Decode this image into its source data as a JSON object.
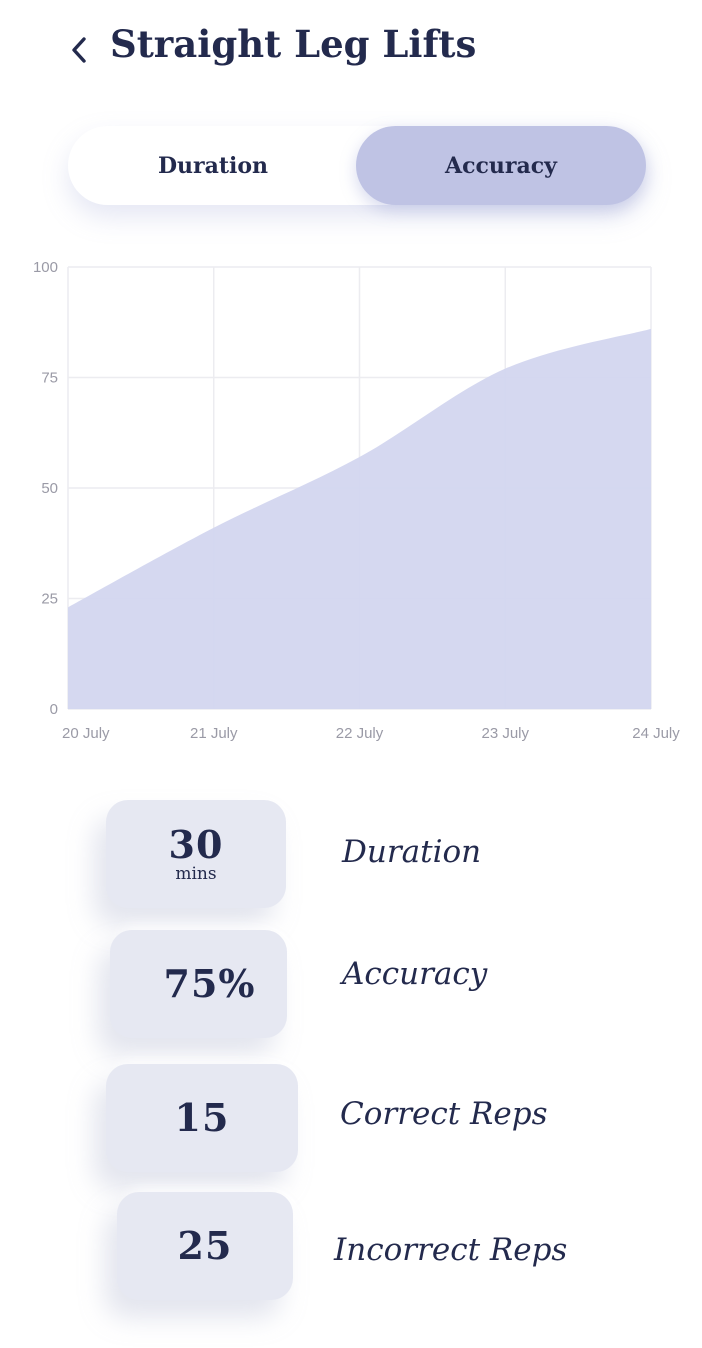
{
  "header": {
    "back_icon": "chevron-left-icon",
    "title": "Straight Leg Lifts"
  },
  "toggle": {
    "options": [
      "Duration",
      "Accuracy"
    ],
    "selected": "Accuracy"
  },
  "chart_data": {
    "type": "area",
    "x": [
      "20 July",
      "21 July",
      "22 July",
      "23 July",
      "24 July"
    ],
    "y_ticks": [
      0,
      25,
      50,
      75,
      100
    ],
    "ylim": [
      0,
      100
    ],
    "grid": true,
    "color": "#d3d6ef",
    "series": [
      {
        "values": [
          23,
          41,
          57,
          77,
          86
        ]
      }
    ]
  },
  "stats": [
    {
      "value": "30",
      "unit": "mins",
      "label": "Duration"
    },
    {
      "value": "75%",
      "unit": "",
      "label": "Accuracy"
    },
    {
      "value": "15",
      "unit": "",
      "label": "Correct Reps"
    },
    {
      "value": "25",
      "unit": "",
      "label": "Incorrect Reps"
    }
  ]
}
